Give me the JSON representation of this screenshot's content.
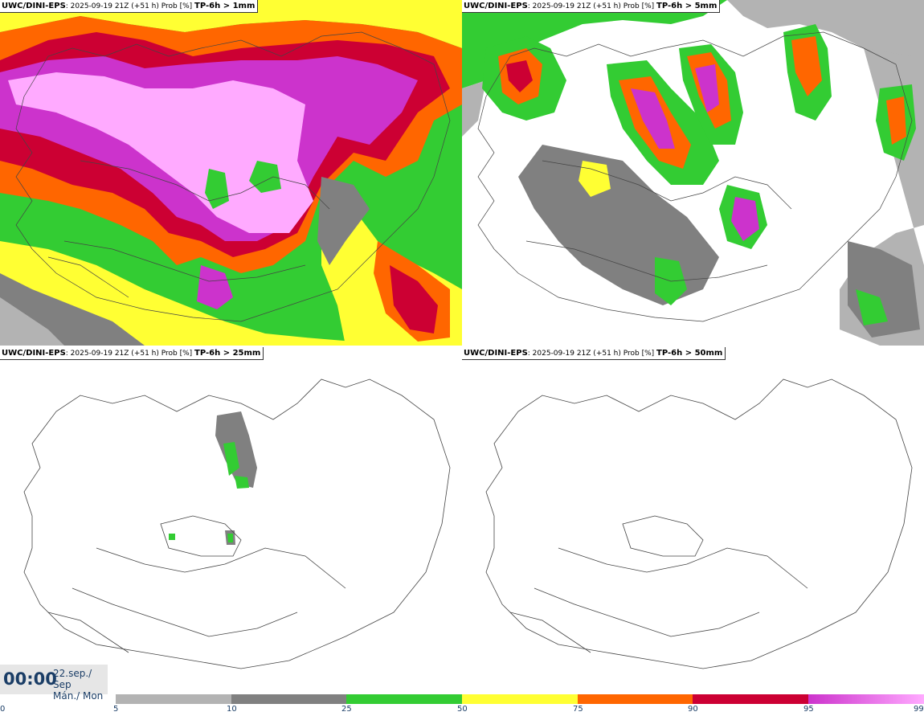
{
  "panels": [
    {
      "model": "UWC/DINI-EPS",
      "info": ": 2025-09-19 21Z (+51 h) Prob [%]",
      "param": "TP-6h > 1mm"
    },
    {
      "model": "UWC/DINI-EPS",
      "info": ": 2025-09-19 21Z (+51 h) Prob [%]",
      "param": "TP-6h > 5mm"
    },
    {
      "model": "UWC/DINI-EPS",
      "info": ": 2025-09-19 21Z (+51 h) Prob [%]",
      "param": "TP-6h > 25mm"
    },
    {
      "model": "UWC/DINI-EPS",
      "info": ": 2025-09-19 21Z (+51 h) Prob [%]",
      "param": "TP-6h > 50mm"
    }
  ],
  "valid_time": {
    "time": "00:00",
    "date_line1": "22.sep./ Sep",
    "date_line2": "Mán./ Mon"
  },
  "colorbar": {
    "ticks": [
      "0",
      "5",
      "10",
      "25",
      "50",
      "75",
      "90",
      "95",
      "99"
    ],
    "colors": [
      "#ffffff",
      "#b3b3b3",
      "#808080",
      "#33cc33",
      "#ffff33",
      "#ff6600",
      "#cc0033",
      "#cc33cc",
      "#ffaaff"
    ]
  },
  "colors": {
    "light_grey": "#b3b3b3",
    "grey": "#808080",
    "green": "#33cc33",
    "yellow": "#ffff33",
    "orange": "#ff6600",
    "red": "#cc0033",
    "purple": "#cc33cc",
    "pink": "#ffaaff"
  }
}
